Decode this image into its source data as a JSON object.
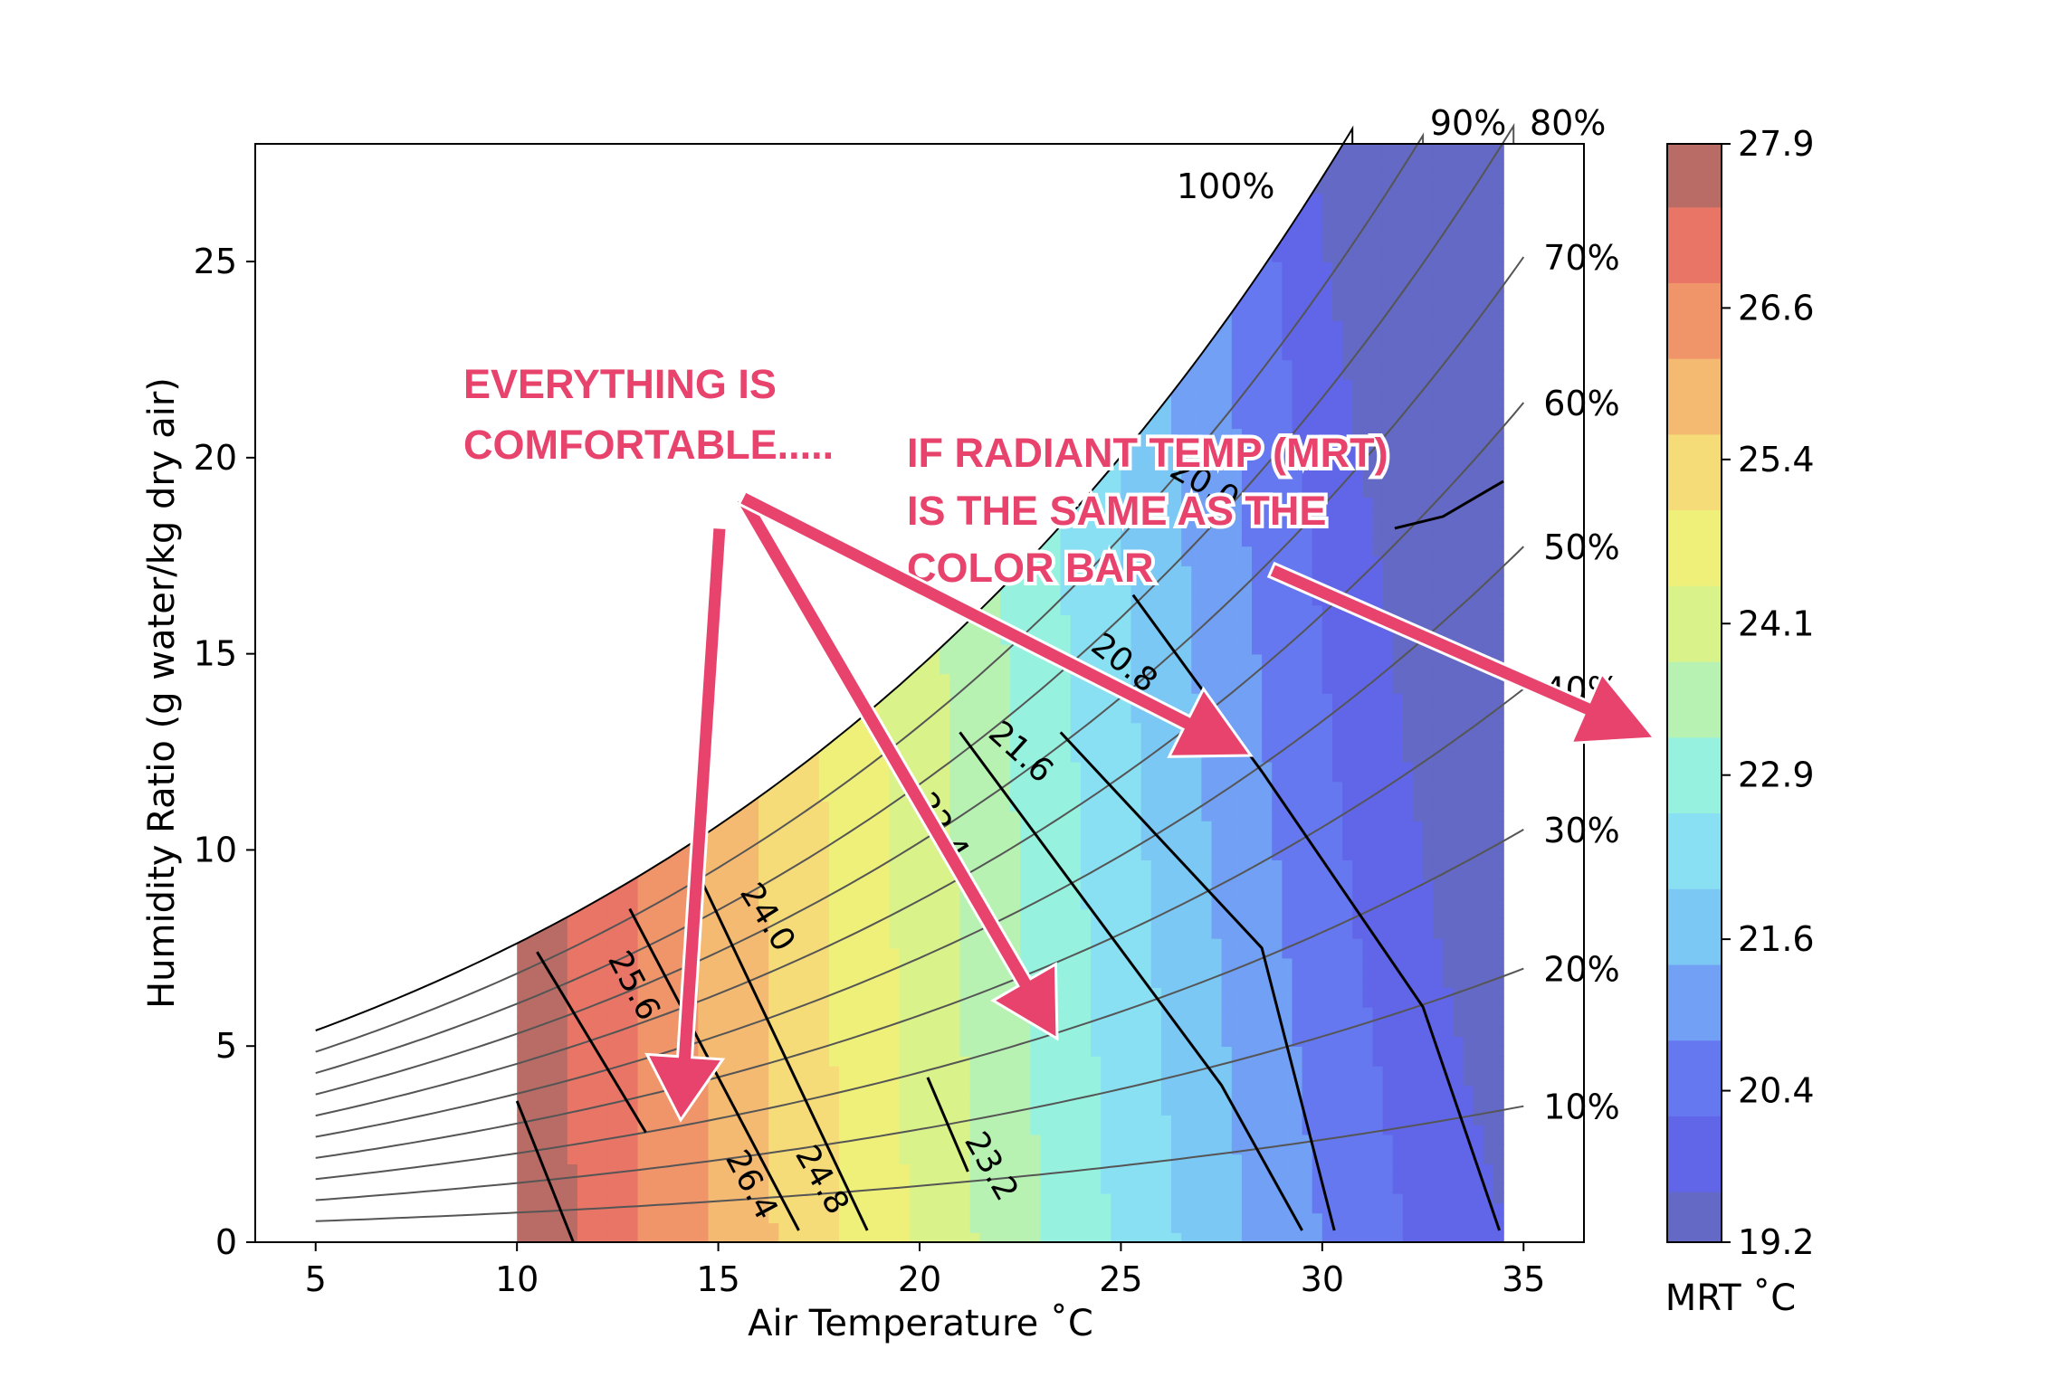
{
  "chart_data": {
    "type": "psychrometric-contour",
    "xlabel": "Air Temperature ˚C",
    "ylabel": "Humidity Ratio (g water/kg dry air)",
    "xlim": [
      3.5,
      36.5
    ],
    "ylim": [
      0,
      28
    ],
    "x_ticks": [
      5,
      10,
      15,
      20,
      25,
      30,
      35
    ],
    "y_ticks": [
      0,
      5,
      10,
      15,
      20,
      25
    ],
    "rh_curves": {
      "x_start": 5,
      "x_end": 35,
      "values": [
        10,
        20,
        30,
        40,
        50,
        60,
        70,
        80,
        90,
        100
      ],
      "labels": [
        "10%",
        "20%",
        "30%",
        "40%",
        "50%",
        "60%",
        "70%",
        "80%",
        "90%",
        "100%"
      ]
    },
    "contour_region": {
      "x_min": 10,
      "x_max": 34.5
    },
    "colorbar": {
      "label": "MRT ˚C",
      "min": 19.2,
      "max": 27.9,
      "tick_labels": [
        "27.9",
        "26.6",
        "25.4",
        "24.1",
        "22.9",
        "21.6",
        "20.4",
        "19.2"
      ],
      "tick_values": [
        27.9,
        26.6,
        25.4,
        24.1,
        22.9,
        21.6,
        20.4,
        19.2
      ],
      "bands": [
        {
          "from": 19.2,
          "to": 19.6,
          "color": "#6369c4"
        },
        {
          "from": 19.6,
          "to": 20.2,
          "color": "#6166e8"
        },
        {
          "from": 20.2,
          "to": 20.8,
          "color": "#6678f0"
        },
        {
          "from": 20.8,
          "to": 21.4,
          "color": "#71a0f4"
        },
        {
          "from": 21.4,
          "to": 22.0,
          "color": "#7bc8f5"
        },
        {
          "from": 22.0,
          "to": 22.6,
          "color": "#88e0f2"
        },
        {
          "from": 22.6,
          "to": 23.2,
          "color": "#96f2de"
        },
        {
          "from": 23.2,
          "to": 23.8,
          "color": "#b8f2b3"
        },
        {
          "from": 23.8,
          "to": 24.4,
          "color": "#d9f28a"
        },
        {
          "from": 24.4,
          "to": 25.0,
          "color": "#eef07a"
        },
        {
          "from": 25.0,
          "to": 25.6,
          "color": "#f5dc78"
        },
        {
          "from": 25.6,
          "to": 26.2,
          "color": "#f4ba72"
        },
        {
          "from": 26.2,
          "to": 26.8,
          "color": "#f0946a"
        },
        {
          "from": 26.8,
          "to": 27.4,
          "color": "#e87566"
        },
        {
          "from": 27.4,
          "to": 27.9,
          "color": "#b86c65"
        }
      ]
    },
    "isolines": [
      {
        "label": "26.4"
      },
      {
        "label": "25.6"
      },
      {
        "label": "24.8"
      },
      {
        "label": "24.0"
      },
      {
        "label": "23.2"
      },
      {
        "label": "22.4"
      },
      {
        "label": "21.6"
      },
      {
        "label": "20.8"
      },
      {
        "label": "20.0"
      }
    ],
    "annotations": [
      {
        "lines": [
          "EVERYTHING IS",
          "COMFORTABLE....."
        ]
      },
      {
        "lines": [
          "IF RADIANT TEMP (MRT)",
          "IS THE SAME AS THE",
          "COLOR BAR"
        ]
      }
    ],
    "annotation_color": "#e8436d"
  }
}
